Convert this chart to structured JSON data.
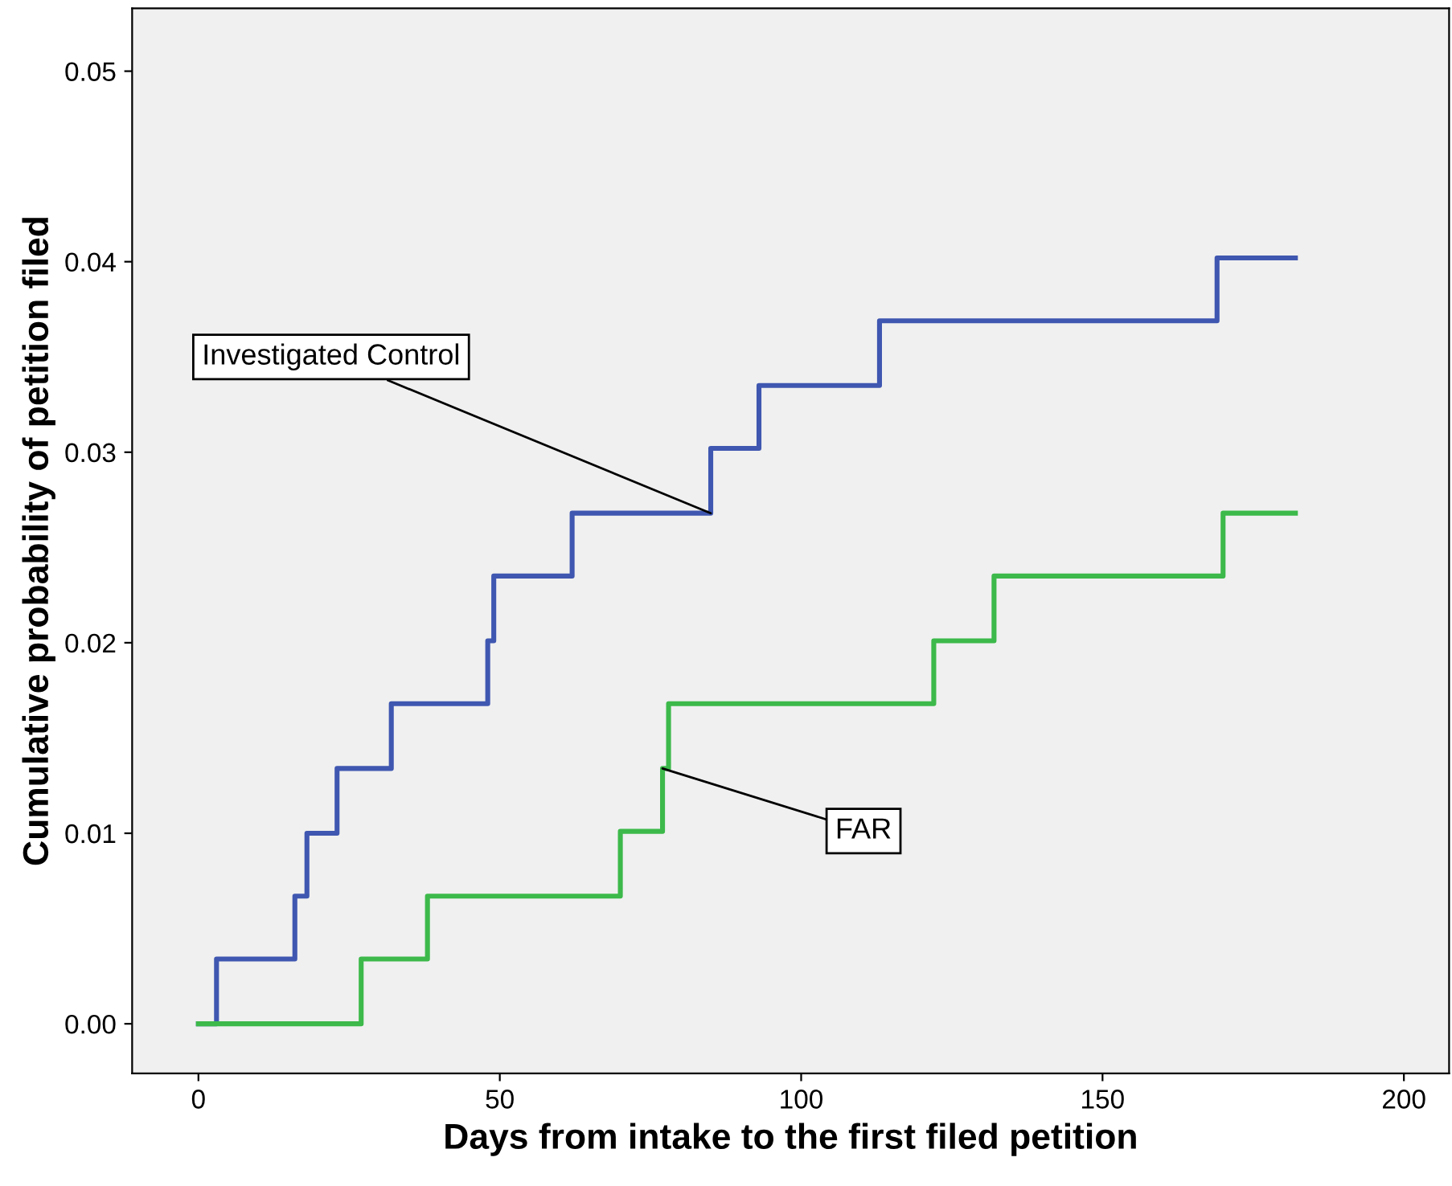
{
  "chart_data": {
    "type": "step",
    "xlabel": "Days from intake to the first filed petition",
    "ylabel": "Cumulative probability of petition filed",
    "series": [
      {
        "color": "#3f57b0",
        "x": [
          0,
          3,
          16,
          18,
          23,
          32,
          48,
          49,
          62,
          85,
          93,
          113,
          169,
          182
        ],
        "values": [
          0,
          0.0034,
          0.0067,
          0.01,
          0.0134,
          0.0168,
          0.0201,
          0.0235,
          0.0268,
          0.0302,
          0.0335,
          0.0369,
          0.0402,
          0.0402
        ]
      },
      {
        "color": "#3cb94a",
        "x": [
          0,
          27,
          38,
          70,
          77,
          78,
          122,
          132,
          170,
          182
        ],
        "values": [
          0,
          0.0034,
          0.0067,
          0.0101,
          0.0134,
          0.0168,
          0.0201,
          0.0235,
          0.0268,
          0.0268
        ]
      }
    ],
    "annotations": [
      {
        "text": "Investigated Control",
        "x": 85,
        "y": 0.0268
      },
      {
        "text": "FAR",
        "x": 77,
        "y": 0.0134
      }
    ],
    "xlim": [
      -11,
      207.5
    ],
    "ylim": [
      -0.0026,
      0.0533
    ],
    "xticks": [
      0,
      50,
      100,
      150,
      200
    ],
    "yticks": [
      {
        "value": 0,
        "label": "0.00"
      },
      {
        "value": 0.01,
        "label": "0.01"
      },
      {
        "value": 0.02,
        "label": "0.02"
      },
      {
        "value": 0.03,
        "label": "0.03"
      },
      {
        "value": 0.04,
        "label": "0.04"
      },
      {
        "value": 0.05,
        "label": "0.05"
      }
    ],
    "grid": false,
    "legend": false
  }
}
